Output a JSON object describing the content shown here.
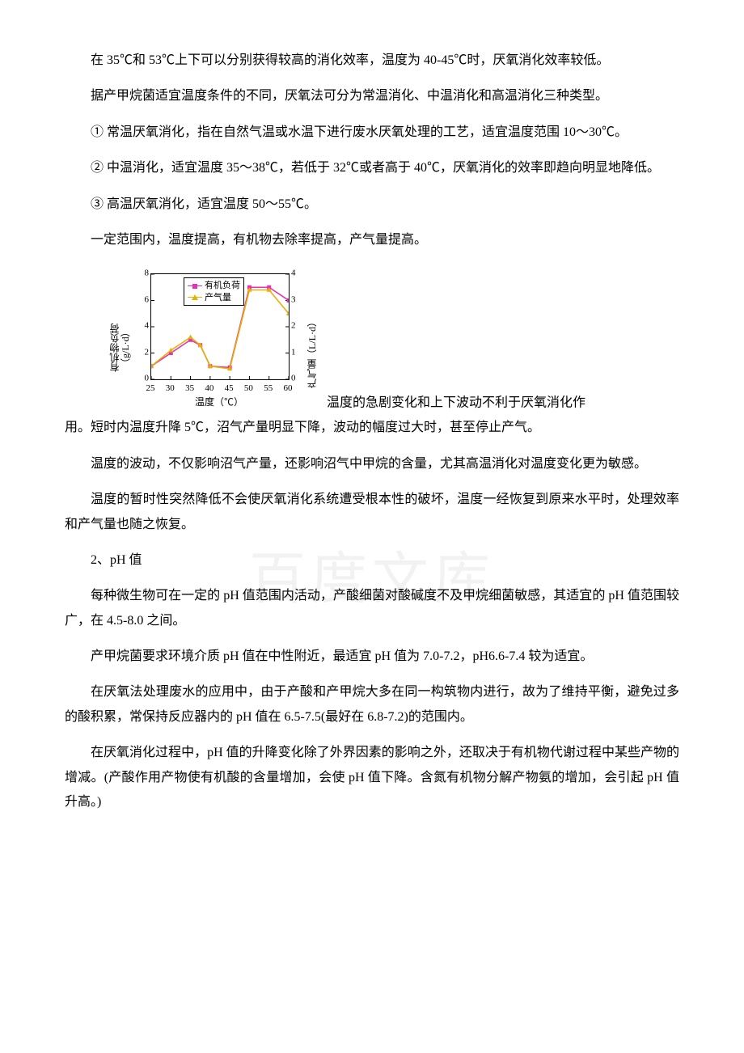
{
  "paragraphs": {
    "p1": "在 35℃和 53℃上下可以分别获得较高的消化效率，温度为 40-45℃时，厌氧消化效率较低。",
    "p2": "据产甲烷菌适宜温度条件的不同，厌氧法可分为常温消化、中温消化和高温消化三种类型。",
    "p3": "① 常温厌氧消化，指在自然气温或水温下进行废水厌氧处理的工艺，适宜温度范围 10～30℃。",
    "p4": "② 中温消化，适宜温度 35～38℃，若低于 32℃或者高于 40℃，厌氧消化的效率即趋向明显地降低。",
    "p5": "③ 高温厌氧消化，适宜温度 50～55℃。",
    "p6": "一定范围内，温度提高，有机物去除率提高，产气量提高。",
    "p7a": "温度的急剧变化和上下波动不利于厌氧消化作",
    "p7b": "用。短时内温度升降 5℃，沼气产量明显下降，波动的幅度过大时，甚至停止产气。",
    "p8": "温度的波动，不仅影响沼气产量，还影响沼气中甲烷的含量，尤其高温消化对温度变化更为敏感。",
    "p9": "温度的暂时性突然降低不会使厌氧消化系统遭受根本性的破坏，温度一经恢复到原来水平时，处理效率和产气量也随之恢复。",
    "h2": "2、pH 值",
    "p10": "每种微生物可在一定的 pH 值范围内活动，产酸细菌对酸碱度不及甲烷细菌敏感，其适宜的 pH 值范围较广，在 4.5-8.0 之间。",
    "p11": "产甲烷菌要求环境介质 pH 值在中性附近，最适宜 pH 值为 7.0-7.2，pH6.6-7.4 较为适宜。",
    "p12": "在厌氧法处理废水的应用中，由于产酸和产甲烷大多在同一构筑物内进行，故为了维持平衡，避免过多的酸积累，常保持反应器内的 pH 值在 6.5-7.5(最好在 6.8-7.2)的范围内。",
    "p13": "在厌氧消化过程中，pH 值的升降变化除了外界因素的影响之外，还取决于有机物代谢过程中某些产物的增减。(产酸作用产物使有机酸的含量增加，会使 pH 值下降。含氮有机物分解产物氨的增加，会引起 pH 值升高。)"
  },
  "chart": {
    "legend_series1": "有机负荷",
    "legend_series2": "产气量",
    "x_label": "温度（℃）",
    "y_label_left_line1": "有机物负荷",
    "y_label_left_line2": "（g/L·d）",
    "y_label_right": "产气量（L/L·d）",
    "x_ticks": [
      25,
      30,
      35,
      40,
      45,
      50,
      55,
      60
    ],
    "y_left_ticks": [
      0,
      2,
      4,
      6,
      8
    ],
    "y_right_ticks": [
      0,
      1,
      2,
      3,
      4
    ],
    "y_left_max": 8,
    "y_right_max": 4,
    "series1_color": "#e62fb2",
    "series2_color": "#e6b100",
    "series1_values_left": [
      1.0,
      2.0,
      3.0,
      2.6,
      1.0,
      0.9,
      7.0,
      7.0,
      6.0
    ],
    "series2_values_right": [
      0.5,
      1.1,
      1.6,
      1.3,
      0.5,
      0.4,
      3.4,
      3.4,
      2.5
    ],
    "x_values": [
      25,
      30,
      35,
      37.5,
      40,
      45,
      50,
      55,
      60
    ],
    "background_color": "#ffffff",
    "axis_color": "#000000",
    "line_width": 1.6,
    "marker_size": 5
  },
  "watermark": "百度文库"
}
